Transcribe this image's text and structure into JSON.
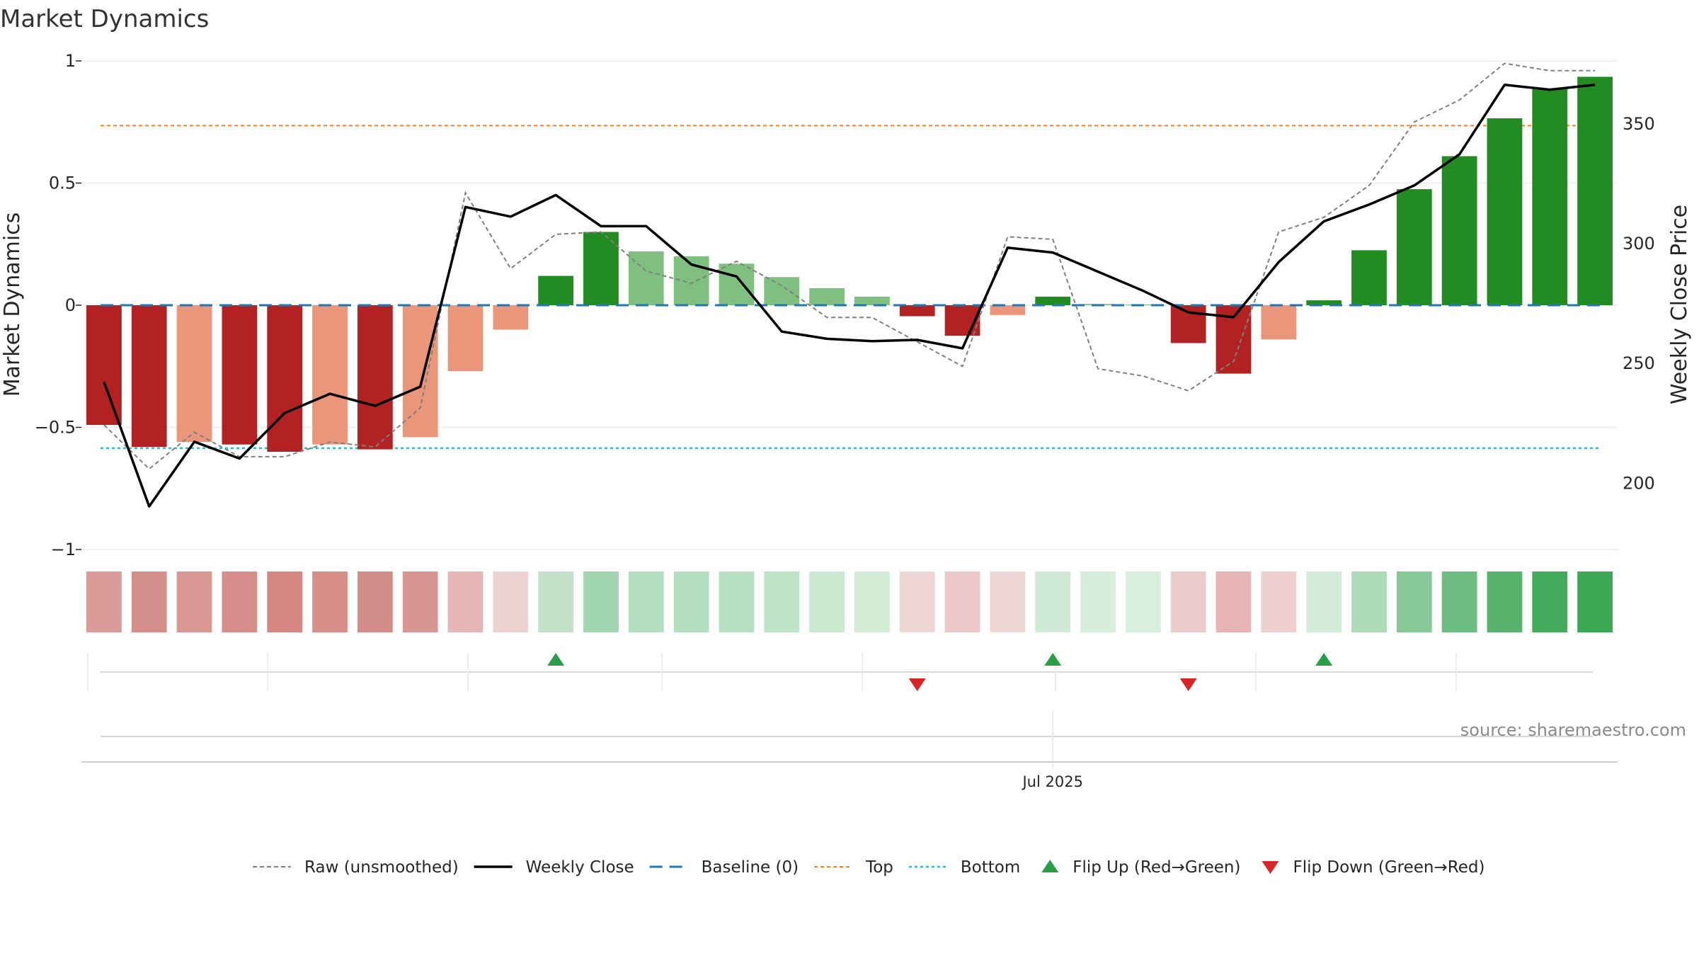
{
  "chart_data": {
    "type": "bar",
    "title": "Market Dynamics",
    "ylabel": "Market Dynamics",
    "y2label": "Weekly Close Price",
    "ylim": [
      -1,
      1
    ],
    "y2lim": [
      172,
      376
    ],
    "yticks": [
      {
        "value": 1,
        "label": "1"
      },
      {
        "value": 0.5,
        "label": "0.5"
      },
      {
        "value": 0,
        "label": "0"
      },
      {
        "value": -0.5,
        "label": "−0.5"
      },
      {
        "value": -1,
        "label": "−1"
      }
    ],
    "y2ticks": [
      {
        "value": 350,
        "label": "350"
      },
      {
        "value": 300,
        "label": "300"
      },
      {
        "value": 250,
        "label": "250"
      },
      {
        "value": 200,
        "label": "200"
      }
    ],
    "weeks": 34,
    "bars": [
      {
        "value": -0.49,
        "color": "#b22222"
      },
      {
        "value": -0.58,
        "color": "#b22222"
      },
      {
        "value": -0.56,
        "color": "#e9967a"
      },
      {
        "value": -0.57,
        "color": "#b22222"
      },
      {
        "value": -0.6,
        "color": "#b22222"
      },
      {
        "value": -0.57,
        "color": "#e9967a"
      },
      {
        "value": -0.59,
        "color": "#b22222"
      },
      {
        "value": -0.54,
        "color": "#e9967a"
      },
      {
        "value": -0.27,
        "color": "#e9967a"
      },
      {
        "value": -0.1,
        "color": "#e9967a"
      },
      {
        "value": 0.12,
        "color": "#228b22"
      },
      {
        "value": 0.3,
        "color": "#228b22"
      },
      {
        "value": 0.22,
        "color": "#7fbf7f"
      },
      {
        "value": 0.2,
        "color": "#7fbf7f"
      },
      {
        "value": 0.17,
        "color": "#7fbf7f"
      },
      {
        "value": 0.115,
        "color": "#7fbf7f"
      },
      {
        "value": 0.07,
        "color": "#7fbf7f"
      },
      {
        "value": 0.035,
        "color": "#7fbf7f"
      },
      {
        "value": -0.045,
        "color": "#b22222"
      },
      {
        "value": -0.125,
        "color": "#b22222"
      },
      {
        "value": -0.04,
        "color": "#e9967a"
      },
      {
        "value": 0.035,
        "color": "#228b22"
      },
      {
        "value": 0.005,
        "color": "#7fbf7f"
      },
      {
        "value": 0.003,
        "color": "#7fbf7f"
      },
      {
        "value": -0.155,
        "color": "#b22222"
      },
      {
        "value": -0.28,
        "color": "#b22222"
      },
      {
        "value": -0.14,
        "color": "#e9967a"
      },
      {
        "value": 0.02,
        "color": "#228b22"
      },
      {
        "value": 0.225,
        "color": "#228b22"
      },
      {
        "value": 0.475,
        "color": "#228b22"
      },
      {
        "value": 0.61,
        "color": "#228b22"
      },
      {
        "value": 0.765,
        "color": "#228b22"
      },
      {
        "value": 0.885,
        "color": "#228b22"
      },
      {
        "value": 0.935,
        "color": "#228b22"
      }
    ],
    "raw_unsmoothed": [
      -0.49,
      -0.67,
      -0.52,
      -0.62,
      -0.62,
      -0.56,
      -0.58,
      -0.42,
      0.46,
      0.15,
      0.29,
      0.3,
      0.14,
      0.09,
      0.18,
      0.08,
      -0.05,
      -0.05,
      -0.15,
      -0.25,
      0.28,
      0.27,
      -0.26,
      -0.29,
      -0.35,
      -0.23,
      0.3,
      0.36,
      0.49,
      0.75,
      0.84,
      0.99,
      0.96,
      0.96
    ],
    "weekly_close": [
      242,
      190,
      217,
      210,
      229,
      237,
      232,
      240,
      315,
      311,
      320,
      307,
      307,
      291,
      286,
      263,
      260,
      259,
      259.5,
      256,
      298,
      296,
      288,
      280,
      271,
      269,
      292,
      309,
      316,
      324,
      337,
      366,
      364,
      366
    ],
    "top": 0.735,
    "bottom": -0.585,
    "baseline": 0,
    "heat_strip": [
      "#da9c98",
      "#d58f8b",
      "#da9894",
      "#d68e8a",
      "#d68783",
      "#d88e89",
      "#d38d88",
      "#d99591",
      "#e5b6b5",
      "#eed2d3",
      "#c4e2c9",
      "#a2d6b0",
      "#b3dfbf",
      "#b3debe",
      "#b6e0c1",
      "#c0e4c8",
      "#c9e8cf",
      "#d2ecd6",
      "#eed6d7",
      "#ecc9c8",
      "#eed6d7",
      "#cfead4",
      "#d7eedb",
      "#d9efdd",
      "#eccbcb",
      "#e6b4b4",
      "#edcfcf",
      "#d3ecd8",
      "#acdbb6",
      "#88c897",
      "#6cbd7f",
      "#58b36c",
      "#44ab5c",
      "#3ca856"
    ],
    "flip_up_weeks": [
      10.5,
      21.5,
      27.5
    ],
    "flip_down_weeks": [
      18.5,
      24.5
    ],
    "flip_up_color": "#2a9d49",
    "flip_down_color": "#d62728",
    "date_tick": {
      "week": 21.5,
      "label": "Jul 2025"
    },
    "legend": [
      {
        "key": "raw",
        "label": "Raw (unsmoothed)"
      },
      {
        "key": "close",
        "label": "Weekly Close"
      },
      {
        "key": "baseline",
        "label": "Baseline (0)"
      },
      {
        "key": "top",
        "label": "Top"
      },
      {
        "key": "bottom",
        "label": "Bottom"
      },
      {
        "key": "flipup",
        "label": "Flip Up (Red→Green)"
      },
      {
        "key": "flipdown",
        "label": "Flip Down (Green→Red)"
      }
    ],
    "source": "source: sharemaestro.com",
    "colors": {
      "raw": "#808080",
      "close": "#000000",
      "baseline": "#1f77b4",
      "top": "#ff7f0e",
      "bottom": "#17becf",
      "grid": "#ececec",
      "axis": "#cccccc"
    }
  }
}
